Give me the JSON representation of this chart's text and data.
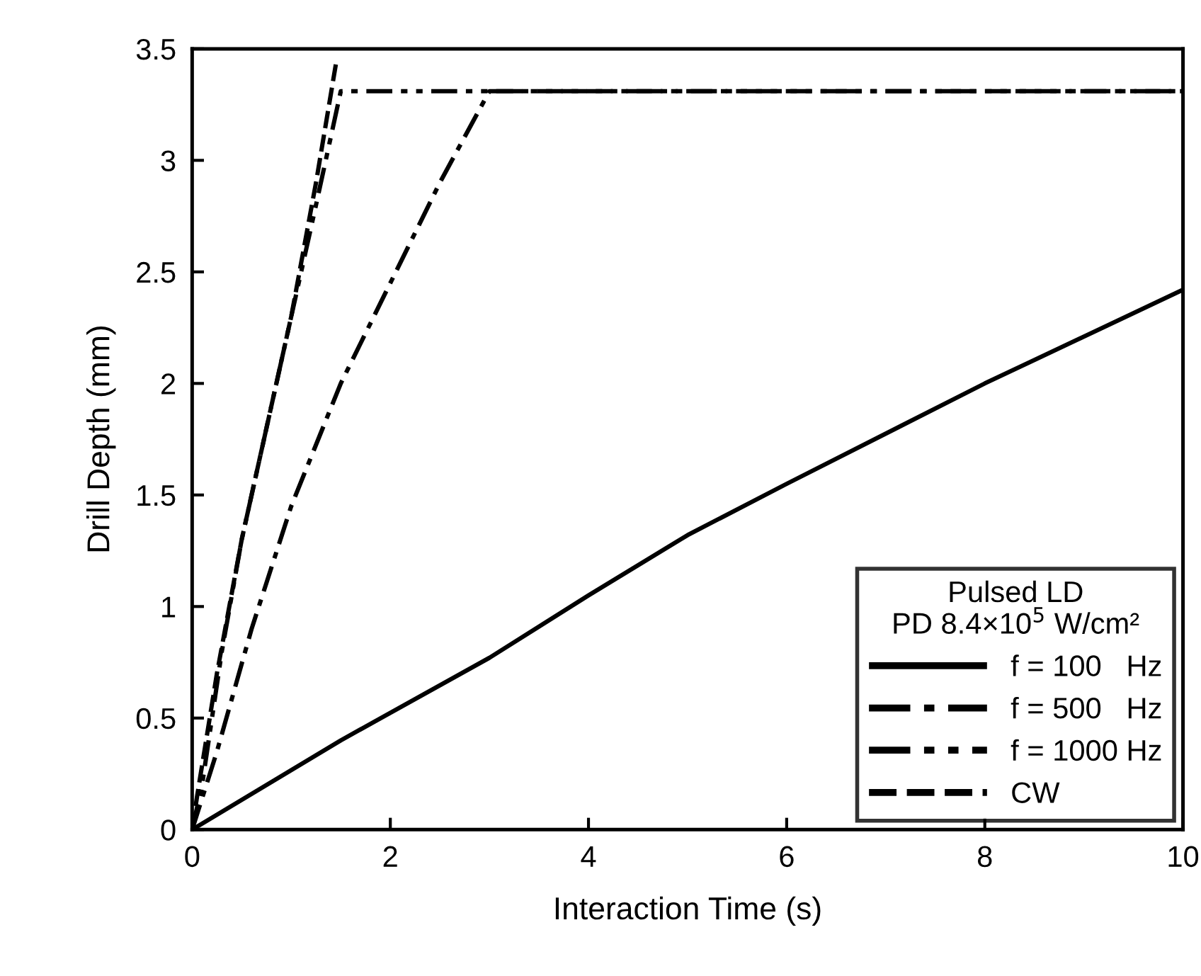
{
  "chart_data": {
    "type": "line",
    "xlabel": "Interaction Time (s)",
    "ylabel": "Drill Depth (mm)",
    "legend_title": "Pulsed LD\nPD 8.4×10$^{5}$ W/cm²",
    "xlim": [
      0,
      10
    ],
    "ylim": [
      0,
      3.5
    ],
    "xticks": [
      0,
      2,
      4,
      6,
      8,
      10
    ],
    "yticks": [
      0,
      0.5,
      1,
      1.5,
      2,
      2.5,
      3,
      3.5
    ],
    "grid": false,
    "legend": "bottom right",
    "marker": "none",
    "series": [
      {
        "name": "f = 100   Hz",
        "color": "#000000",
        "line_style": "solid",
        "x": [
          0,
          1.5,
          3,
          4,
          5,
          6,
          8,
          10
        ],
        "values": [
          0,
          0.4,
          0.77,
          1.05,
          1.32,
          1.55,
          2.0,
          2.42
        ]
      },
      {
        "name": "f = 500   Hz",
        "color": "#000000",
        "line_style": "dashdot",
        "x": [
          0,
          0.25,
          0.6,
          1.0,
          1.5,
          2.0,
          2.5,
          3.0,
          10
        ],
        "values": [
          0,
          0.35,
          0.9,
          1.45,
          2.0,
          2.45,
          2.9,
          3.31,
          3.31
        ]
      },
      {
        "name": "f = 1000 Hz",
        "color": "#000000",
        "line_style": "dashdotdot",
        "x": [
          0,
          0.1,
          0.3,
          0.5,
          0.8,
          1.0,
          1.25,
          1.5,
          10
        ],
        "values": [
          0,
          0.2,
          0.8,
          1.3,
          1.9,
          2.3,
          2.8,
          3.31,
          3.31
        ]
      },
      {
        "name": "CW",
        "color": "#000000",
        "line_style": "dashed",
        "x": [
          0,
          0.05,
          0.25,
          0.5,
          0.75,
          1.0,
          1.25,
          1.45
        ],
        "values": [
          0,
          0.15,
          0.7,
          1.3,
          1.8,
          2.3,
          2.9,
          3.43
        ]
      }
    ]
  }
}
